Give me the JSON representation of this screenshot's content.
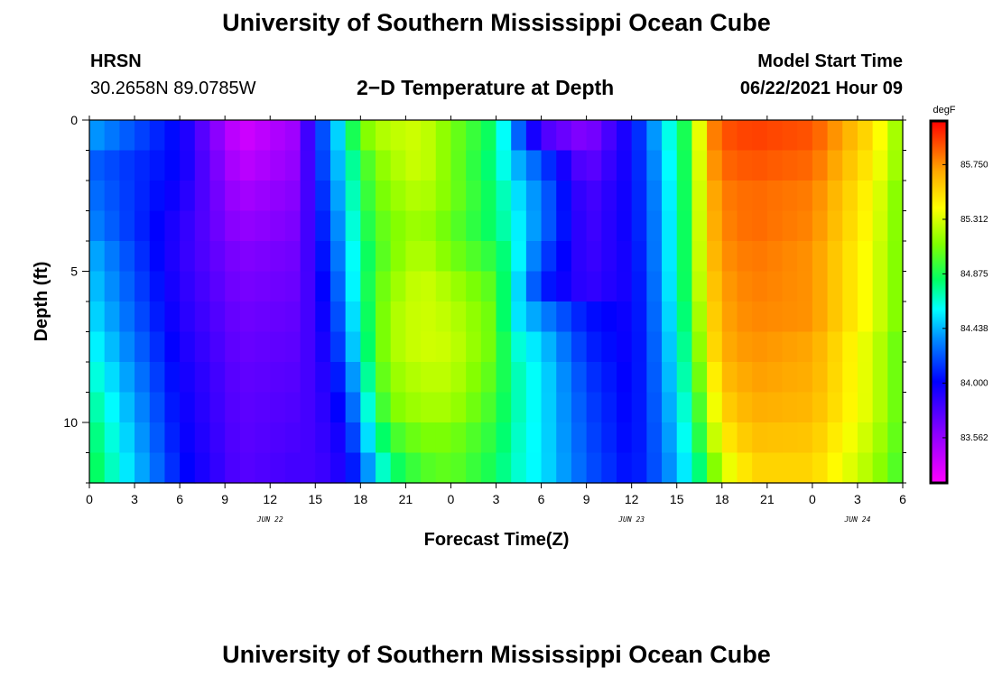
{
  "header": {
    "title_top": "University of Southern Mississippi Ocean Cube",
    "title_bottom": "University of Southern Mississippi Ocean Cube",
    "station": "HRSN",
    "coords": "30.2658N  89.0785W",
    "plot_title": "2−D Temperature at Depth",
    "model_label": "Model Start Time",
    "model_time": "06/22/2021 Hour 09"
  },
  "chart_data": {
    "type": "heatmap",
    "title": "2−D Temperature at Depth",
    "xlabel": "Forecast Time(Z)",
    "ylabel": "Depth (ft)",
    "units": "degF",
    "x_ticks": [
      "0",
      "3",
      "6",
      "9",
      "12",
      "15",
      "18",
      "21",
      "0",
      "3",
      "6",
      "9",
      "12",
      "15",
      "18",
      "21",
      "0",
      "3",
      "6"
    ],
    "x_tick_hours": [
      0,
      3,
      6,
      9,
      12,
      15,
      18,
      21,
      24,
      27,
      30,
      33,
      36,
      39,
      42,
      45,
      48,
      51,
      54
    ],
    "date_labels": [
      {
        "text": "JUN 22",
        "hour": 12
      },
      {
        "text": "JUN 23",
        "hour": 36
      },
      {
        "text": "JUN 24",
        "hour": 51
      }
    ],
    "y_ticks": [
      "0",
      "5",
      "10"
    ],
    "y_tick_values": [
      0,
      5,
      10
    ],
    "ylim": [
      0,
      12
    ],
    "xlim": [
      0,
      54
    ],
    "colorbar": {
      "min": 83.2,
      "max": 86.1,
      "labels": [
        "85.750",
        "85.312",
        "84.875",
        "84.438",
        "84.000",
        "83.562"
      ],
      "label_values": [
        85.75,
        85.312,
        84.875,
        84.438,
        84.0,
        83.562
      ]
    },
    "depth_levels_ft": [
      0.5,
      1.5,
      2.5,
      3.5,
      4.5,
      5.5,
      6.5,
      7.5,
      8.5,
      9.5,
      10.5,
      11.5
    ],
    "time_hours": [
      0,
      6,
      10,
      14,
      15,
      16,
      17,
      18,
      19,
      20,
      22,
      24,
      27,
      28,
      30,
      33,
      36,
      38,
      40,
      41,
      42,
      44,
      48,
      52,
      54
    ],
    "values_degF": [
      [
        84.4,
        84.0,
        83.35,
        83.55,
        84.1,
        84.3,
        84.7,
        85.05,
        85.2,
        85.25,
        85.3,
        85.1,
        84.8,
        84.4,
        83.8,
        83.6,
        84.0,
        84.5,
        85.0,
        85.7,
        85.9,
        85.95,
        85.9,
        85.5,
        85.1
      ],
      [
        84.25,
        84.0,
        83.42,
        83.58,
        84.05,
        84.3,
        84.6,
        84.9,
        85.1,
        85.2,
        85.3,
        85.1,
        84.75,
        84.5,
        84.2,
        83.7,
        84.0,
        84.45,
        85.0,
        85.65,
        85.85,
        85.9,
        85.85,
        85.45,
        85.1
      ],
      [
        84.3,
        83.95,
        83.5,
        83.62,
        84.0,
        84.25,
        84.55,
        84.85,
        85.05,
        85.15,
        85.25,
        85.1,
        84.8,
        84.6,
        84.3,
        83.78,
        84.0,
        84.42,
        85.0,
        85.6,
        85.8,
        85.85,
        85.8,
        85.4,
        85.05
      ],
      [
        84.35,
        83.9,
        83.56,
        83.65,
        83.98,
        84.2,
        84.5,
        84.8,
        85.0,
        85.1,
        85.2,
        85.05,
        84.8,
        84.65,
        84.3,
        83.8,
        84.0,
        84.4,
        85.0,
        85.58,
        85.78,
        85.85,
        85.78,
        85.38,
        85.05
      ],
      [
        84.45,
        83.88,
        83.62,
        83.68,
        83.95,
        84.15,
        84.45,
        84.75,
        84.95,
        85.1,
        85.25,
        85.1,
        84.9,
        84.7,
        84.2,
        83.82,
        83.98,
        84.4,
        85.0,
        85.55,
        85.75,
        85.82,
        85.75,
        85.35,
        85.05
      ],
      [
        84.5,
        83.9,
        83.65,
        83.7,
        83.92,
        84.1,
        84.4,
        84.75,
        85.0,
        85.15,
        85.3,
        85.2,
        85.0,
        84.65,
        84.1,
        83.85,
        83.97,
        84.38,
        85.0,
        85.5,
        85.72,
        85.8,
        85.75,
        85.35,
        85.05
      ],
      [
        84.55,
        83.92,
        83.68,
        83.72,
        83.9,
        84.05,
        84.35,
        84.7,
        85.0,
        85.2,
        85.3,
        85.25,
        85.05,
        84.6,
        84.35,
        84.05,
        83.97,
        84.36,
        84.95,
        85.45,
        85.7,
        85.78,
        85.75,
        85.35,
        85.05
      ],
      [
        84.62,
        83.95,
        83.7,
        83.74,
        83.88,
        84.0,
        84.3,
        84.65,
        85.0,
        85.2,
        85.3,
        85.28,
        85.05,
        84.7,
        84.5,
        84.1,
        83.97,
        84.34,
        84.9,
        85.4,
        85.68,
        85.75,
        85.7,
        85.3,
        85.0
      ],
      [
        84.7,
        83.98,
        83.72,
        83.76,
        83.86,
        83.95,
        84.2,
        84.55,
        84.95,
        85.15,
        85.25,
        85.25,
        85.0,
        84.75,
        84.55,
        84.15,
        83.98,
        84.32,
        84.85,
        85.3,
        85.62,
        85.72,
        85.68,
        85.3,
        85.0
      ],
      [
        84.78,
        84.0,
        83.73,
        83.78,
        83.84,
        83.92,
        84.1,
        84.45,
        84.85,
        85.1,
        85.2,
        85.2,
        84.95,
        84.75,
        84.55,
        84.18,
        83.99,
        84.3,
        84.78,
        85.2,
        85.55,
        85.68,
        85.65,
        85.3,
        85.0
      ],
      [
        84.85,
        84.02,
        83.74,
        83.8,
        83.82,
        83.9,
        84.0,
        84.35,
        84.7,
        84.95,
        85.1,
        85.1,
        84.9,
        84.72,
        84.55,
        84.2,
        84.0,
        84.28,
        84.72,
        85.1,
        85.45,
        85.62,
        85.6,
        85.25,
        84.98
      ],
      [
        84.9,
        84.05,
        83.75,
        83.82,
        83.8,
        83.88,
        83.95,
        84.2,
        84.55,
        84.8,
        85.0,
        85.05,
        84.85,
        84.7,
        84.55,
        84.22,
        84.02,
        84.26,
        84.65,
        84.95,
        85.3,
        85.55,
        85.55,
        85.2,
        84.95
      ]
    ]
  }
}
